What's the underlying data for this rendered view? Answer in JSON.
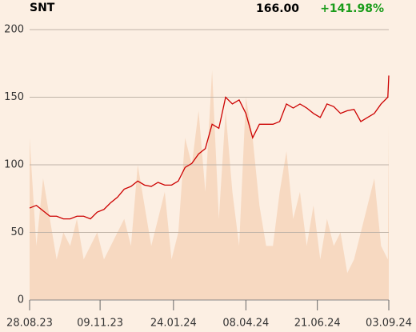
{
  "chart_data": {
    "type": "line",
    "title": "SNT",
    "price_label": "166.00",
    "change_label": "+141.98%",
    "change_color": "#1a9c1a",
    "x": [
      "2023-08-28",
      "2023-09-04",
      "2023-09-11",
      "2023-09-18",
      "2023-09-25",
      "2023-10-02",
      "2023-10-09",
      "2023-10-16",
      "2023-10-23",
      "2023-10-30",
      "2023-11-06",
      "2023-11-13",
      "2023-11-20",
      "2023-11-27",
      "2023-12-04",
      "2023-12-11",
      "2023-12-18",
      "2023-12-25",
      "2024-01-01",
      "2024-01-08",
      "2024-01-15",
      "2024-01-22",
      "2024-01-29",
      "2024-02-05",
      "2024-02-12",
      "2024-02-19",
      "2024-02-26",
      "2024-03-04",
      "2024-03-11",
      "2024-03-18",
      "2024-03-25",
      "2024-04-01",
      "2024-04-08",
      "2024-04-15",
      "2024-04-22",
      "2024-04-29",
      "2024-05-06",
      "2024-05-13",
      "2024-05-20",
      "2024-05-27",
      "2024-06-03",
      "2024-06-10",
      "2024-06-17",
      "2024-06-24",
      "2024-07-01",
      "2024-07-08",
      "2024-07-15",
      "2024-07-22",
      "2024-07-29",
      "2024-08-05",
      "2024-08-12",
      "2024-08-19",
      "2024-08-26",
      "2024-09-02",
      "2024-09-03"
    ],
    "series": [
      {
        "color": "#cc0000",
        "values": [
          68,
          70,
          66,
          62,
          62,
          60,
          60,
          62,
          62,
          60,
          65,
          67,
          72,
          76,
          82,
          84,
          88,
          85,
          84,
          87,
          85,
          85,
          88,
          98,
          101,
          108,
          112,
          130,
          127,
          150,
          145,
          148,
          138,
          120,
          130,
          130,
          130,
          132,
          145,
          142,
          145,
          142,
          138,
          135,
          145,
          143,
          138,
          140,
          141,
          132,
          135,
          138,
          145,
          150,
          166
        ]
      },
      {
        "color": "#f7d9c1",
        "axis": "y2",
        "values": [
          60,
          20,
          45,
          30,
          15,
          25,
          20,
          30,
          15,
          20,
          25,
          15,
          20,
          25,
          30,
          20,
          50,
          35,
          20,
          30,
          40,
          15,
          25,
          60,
          50,
          70,
          40,
          85,
          30,
          70,
          40,
          20,
          75,
          60,
          35,
          20,
          20,
          40,
          55,
          30,
          40,
          20,
          35,
          15,
          30,
          20,
          25,
          10,
          15,
          25,
          35,
          45,
          20,
          15,
          65
        ]
      }
    ],
    "xlim": [
      "2023-08-28",
      "2024-09-03"
    ],
    "xticks": [
      {
        "value": "2023-08-28",
        "label": "28.08.23"
      },
      {
        "value": "2023-11-09",
        "label": "09.11.23"
      },
      {
        "value": "2024-01-24",
        "label": "24.01.24"
      },
      {
        "value": "2024-04-08",
        "label": "08.04.24"
      },
      {
        "value": "2024-06-21",
        "label": "21.06.24"
      },
      {
        "value": "2024-09-03",
        "label": "03.09.24"
      }
    ],
    "ylim": [
      0,
      200
    ],
    "yticks": [
      0,
      50,
      100,
      150,
      200
    ],
    "y2lim": [
      0,
      100
    ],
    "grid": true
  }
}
